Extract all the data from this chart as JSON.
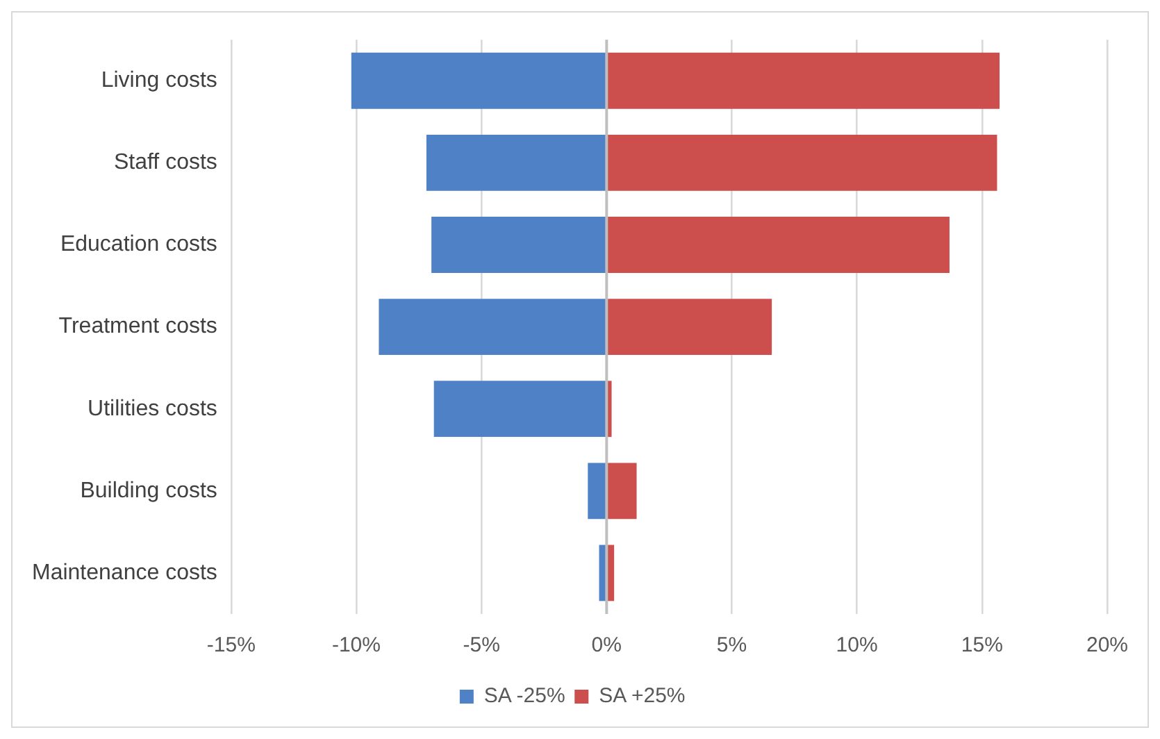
{
  "chart_data": {
    "type": "bar",
    "orientation": "horizontal",
    "stacked": true,
    "categories": [
      "Living costs",
      "Staff costs",
      "Education costs",
      "Treatment costs",
      "Utilities costs",
      "Building costs",
      "Maintenance costs"
    ],
    "series": [
      {
        "name": "SA -25%",
        "color": "#4f81c7",
        "values": [
          -10.2,
          -7.2,
          -7.0,
          -9.1,
          -6.9,
          -0.75,
          -0.3
        ]
      },
      {
        "name": "SA +25%",
        "color": "#cd4f4d",
        "values": [
          15.7,
          15.6,
          13.7,
          6.6,
          0.2,
          1.2,
          0.3
        ]
      }
    ],
    "xlim": [
      -15,
      20
    ],
    "xticks": [
      {
        "value": -15,
        "label": "-15%"
      },
      {
        "value": -10,
        "label": "-10%"
      },
      {
        "value": -5,
        "label": "-5%"
      },
      {
        "value": 0,
        "label": "0%"
      },
      {
        "value": 5,
        "label": "5%"
      },
      {
        "value": 10,
        "label": "10%"
      },
      {
        "value": 15,
        "label": "15%"
      },
      {
        "value": 20,
        "label": "20%"
      }
    ],
    "grid": "x",
    "legend": "bottom"
  }
}
